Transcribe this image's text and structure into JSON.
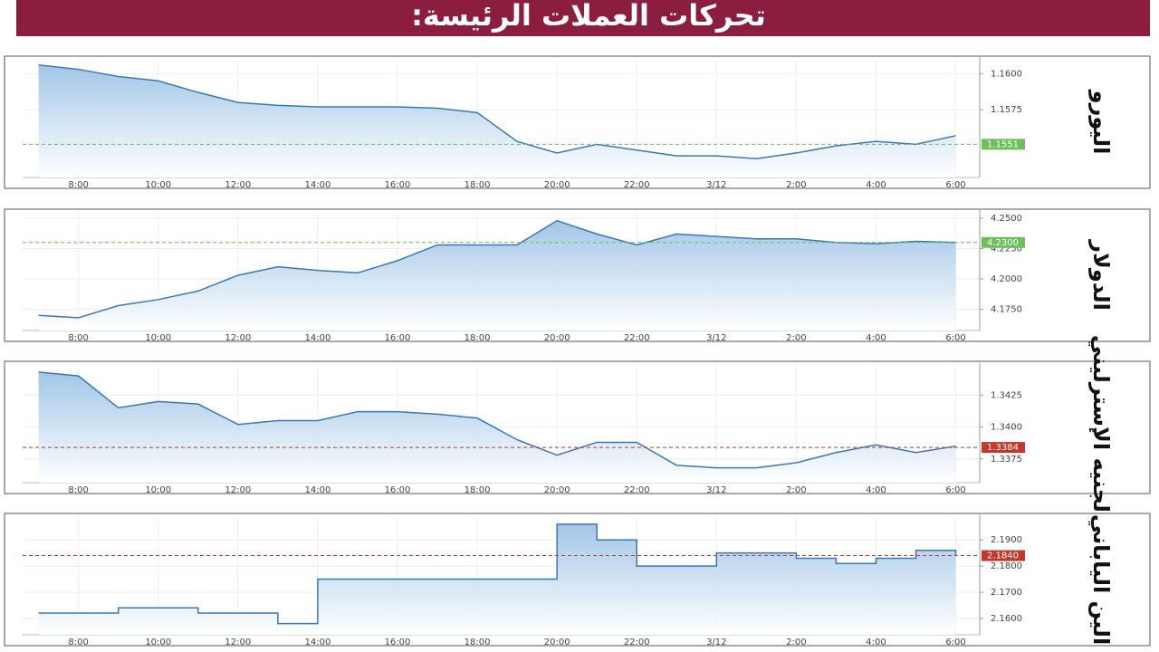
{
  "header": {
    "title": "تحركات العملات الرئيسة:"
  },
  "chart_data": [
    {
      "type": "area",
      "title": "اليورو",
      "color": "#3a78b5",
      "badge_color": "#6cbf5a",
      "x": [
        7,
        8,
        9,
        10,
        11,
        12,
        13,
        14,
        15,
        16,
        17,
        18,
        19,
        20,
        21,
        22,
        23,
        24,
        25,
        26,
        27,
        28,
        29,
        30
      ],
      "values": [
        1.1606,
        1.1603,
        1.1598,
        1.1595,
        1.1587,
        1.158,
        1.1578,
        1.1577,
        1.1577,
        1.1577,
        1.1576,
        1.1573,
        1.1553,
        1.1545,
        1.1551,
        1.1547,
        1.1543,
        1.1543,
        1.1541,
        1.1545,
        1.155,
        1.1553,
        1.1551,
        1.1557
      ],
      "xlim": [
        6.6,
        30.6
      ],
      "ylim": [
        1.1528,
        1.1609
      ],
      "xticks": [
        {
          "value": 8,
          "label": "8:00"
        },
        {
          "value": 10,
          "label": "10:00"
        },
        {
          "value": 12,
          "label": "12:00"
        },
        {
          "value": 14,
          "label": "14:00"
        },
        {
          "value": 16,
          "label": "16:00"
        },
        {
          "value": 18,
          "label": "18:00"
        },
        {
          "value": 20,
          "label": "20:00"
        },
        {
          "value": 22,
          "label": "22:00"
        },
        {
          "value": 24,
          "label": "3/12"
        },
        {
          "value": 26,
          "label": "2:00"
        },
        {
          "value": 28,
          "label": "4:00"
        },
        {
          "value": 30,
          "label": "6:00"
        }
      ],
      "yticks": [
        {
          "value": 1.16,
          "label": "1.1600"
        },
        1.1575
      ],
      "current": 1.1551,
      "grid": true
    },
    {
      "type": "area",
      "title": "الدولار",
      "color": "#3a78b5",
      "badge_color": "#6cbf5a",
      "x": [
        7,
        8,
        9,
        10,
        11,
        12,
        13,
        14,
        15,
        16,
        17,
        18,
        19,
        20,
        21,
        22,
        23,
        24,
        25,
        26,
        27,
        28,
        29,
        30
      ],
      "values": [
        4.17,
        4.168,
        4.178,
        4.183,
        4.19,
        4.203,
        4.21,
        4.207,
        4.205,
        4.215,
        4.228,
        4.228,
        4.228,
        4.248,
        4.237,
        4.228,
        4.237,
        4.235,
        4.233,
        4.233,
        4.23,
        4.229,
        4.231,
        4.23
      ],
      "xlim": [
        6.6,
        30.6
      ],
      "ylim": [
        4.1575,
        4.2537
      ],
      "xticks": [
        {
          "value": 8,
          "label": "8:00"
        },
        {
          "value": 10,
          "label": "10:00"
        },
        {
          "value": 12,
          "label": "12:00"
        },
        {
          "value": 14,
          "label": "14:00"
        },
        {
          "value": 16,
          "label": "16:00"
        },
        {
          "value": 18,
          "label": "18:00"
        },
        {
          "value": 20,
          "label": "20:00"
        },
        {
          "value": 22,
          "label": "22:00"
        },
        {
          "value": 24,
          "label": "3/12"
        },
        {
          "value": 26,
          "label": "2:00"
        },
        {
          "value": 28,
          "label": "4:00"
        },
        {
          "value": 30,
          "label": "6:00"
        }
      ],
      "yticks": [
        {
          "value": 4.25,
          "label": "4.2500"
        },
        {
          "value": 4.225,
          "label": "4.2250"
        },
        {
          "value": 4.2,
          "label": "4.2000"
        },
        {
          "value": 4.175,
          "label": "4.1750"
        }
      ],
      "current": {
        "value": 4.23,
        "label": "4.2300"
      },
      "grid": true
    },
    {
      "type": "area",
      "title": "الجنيه الإسترليني",
      "color": "#3a78b5",
      "badge_color": "#c0392b",
      "x": [
        7,
        8,
        9,
        10,
        11,
        12,
        13,
        14,
        15,
        16,
        17,
        18,
        19,
        20,
        21,
        22,
        23,
        24,
        25,
        26,
        27,
        28,
        29,
        30
      ],
      "values": [
        1.3443,
        1.344,
        1.3415,
        1.342,
        1.3418,
        1.3402,
        1.3405,
        1.3405,
        1.3412,
        1.3412,
        1.341,
        1.3407,
        1.339,
        1.3378,
        1.3388,
        1.3388,
        1.337,
        1.3368,
        1.3368,
        1.3372,
        1.338,
        1.3386,
        1.338,
        1.3385
      ],
      "xlim": [
        6.6,
        30.6
      ],
      "ylim": [
        1.33564,
        1.34479
      ],
      "xticks": [
        {
          "value": 8,
          "label": "8:00"
        },
        {
          "value": 10,
          "label": "10:00"
        },
        {
          "value": 12,
          "label": "12:00"
        },
        {
          "value": 14,
          "label": "14:00"
        },
        {
          "value": 16,
          "label": "16:00"
        },
        {
          "value": 18,
          "label": "18:00"
        },
        {
          "value": 20,
          "label": "20:00"
        },
        {
          "value": 22,
          "label": "22:00"
        },
        {
          "value": 24,
          "label": "3/12"
        },
        {
          "value": 26,
          "label": "2:00"
        },
        {
          "value": 28,
          "label": "4:00"
        },
        {
          "value": 30,
          "label": "6:00"
        }
      ],
      "yticks": [
        1.3425,
        {
          "value": 1.34,
          "label": "1.3400"
        },
        1.3375
      ],
      "current": 1.3384,
      "grid": true
    },
    {
      "type": "area",
      "title": "الين الياباني",
      "color": "#3a78b5",
      "badge_color": "#c0392b",
      "step": true,
      "x": [
        7,
        8,
        9,
        10,
        11,
        12,
        13,
        14,
        15,
        16,
        17,
        18,
        19,
        20,
        21,
        22,
        23,
        24,
        25,
        26,
        27,
        28,
        29,
        30
      ],
      "values": [
        2.162,
        2.162,
        2.164,
        2.164,
        2.162,
        2.162,
        2.158,
        2.175,
        2.175,
        2.175,
        2.175,
        2.175,
        2.175,
        2.196,
        2.19,
        2.18,
        2.18,
        2.185,
        2.185,
        2.183,
        2.181,
        2.183,
        2.186,
        2.184
      ],
      "xlim": [
        6.6,
        30.6
      ],
      "ylim": [
        2.1537,
        2.1984
      ],
      "xticks": [
        {
          "value": 8,
          "label": "8:00"
        },
        {
          "value": 10,
          "label": "10:00"
        },
        {
          "value": 12,
          "label": "12:00"
        },
        {
          "value": 14,
          "label": "14:00"
        },
        {
          "value": 16,
          "label": "16:00"
        },
        {
          "value": 18,
          "label": "18:00"
        },
        {
          "value": 20,
          "label": "20:00"
        },
        {
          "value": 22,
          "label": "22:00"
        },
        {
          "value": 24,
          "label": "3/12"
        },
        {
          "value": 26,
          "label": "2:00"
        },
        {
          "value": 28,
          "label": "4:00"
        },
        {
          "value": 30,
          "label": "6:00"
        }
      ],
      "yticks": [
        {
          "value": 2.19,
          "label": "2.1900"
        },
        {
          "value": 2.18,
          "label": "2.1800"
        },
        {
          "value": 2.17,
          "label": "2.1700"
        },
        {
          "value": 2.16,
          "label": "2.1600"
        }
      ],
      "current": {
        "value": 2.184,
        "label": "2.1840"
      },
      "grid": true
    }
  ]
}
